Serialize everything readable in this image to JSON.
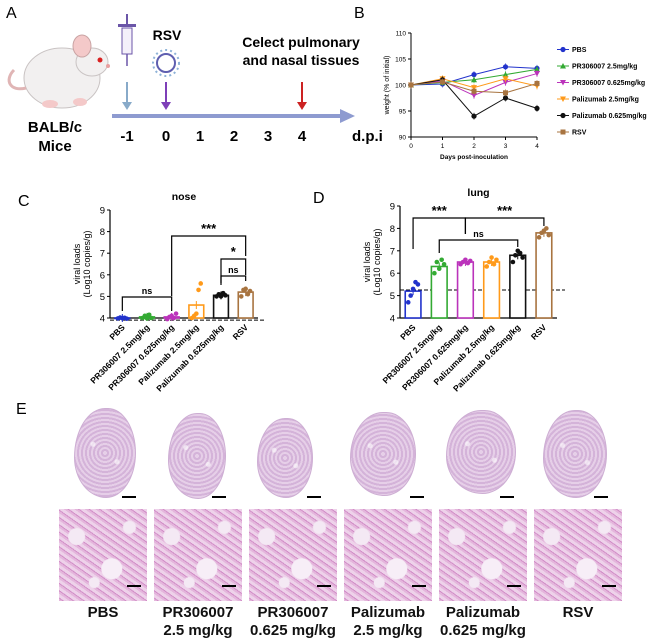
{
  "panels": {
    "a": "A",
    "b": "B",
    "c": "C",
    "d": "D",
    "e": "E"
  },
  "panel_a": {
    "mouse_label_1": "BALB/c",
    "mouse_label_2": "Mice",
    "virus_label": "RSV",
    "collect_line_1": "Celect pulmonary",
    "collect_line_2": "and nasal tissues",
    "timeline_ticks": [
      "-1",
      "0",
      "1",
      "2",
      "3",
      "4"
    ],
    "timeline_unit": "d.p.i",
    "colors": {
      "timeline": "#8e9bd0",
      "pre_arrow": "#88aac9",
      "virus_arrow": "#7e3fb8",
      "collect_arrow": "#cc2222"
    }
  },
  "chart_data": [
    {
      "id": "B",
      "type": "line",
      "title": "",
      "xlabel": "Days post-inoculation",
      "ylabel": "weight (% of initial)",
      "x": [
        0,
        1,
        2,
        3,
        4
      ],
      "xlim": [
        0,
        4
      ],
      "ylim": [
        90,
        110
      ],
      "xticks": [
        "0",
        "1",
        "2",
        "3",
        "4"
      ],
      "yticks": [
        "90",
        "95",
        "100",
        "105",
        "110"
      ],
      "series": [
        {
          "name": "PBS",
          "color": "#2233cc",
          "marker": "circle",
          "values": [
            100,
            100.2,
            102,
            103.5,
            103.2
          ]
        },
        {
          "name": "PR306007 2.5mg/kg",
          "color": "#33aa33",
          "marker": "triangle",
          "values": [
            100,
            100.5,
            101,
            102,
            103
          ]
        },
        {
          "name": "PR306007 0.625mg/kg",
          "color": "#bb33bb",
          "marker": "triangle-down",
          "values": [
            100,
            100.8,
            98,
            100.5,
            102.2
          ]
        },
        {
          "name": "Palizumab 2.5mg/kg",
          "color": "#ff9a1a",
          "marker": "triangle-down",
          "values": [
            100,
            101.2,
            99.5,
            101.2,
            99.8
          ]
        },
        {
          "name": "Palizumab 0.625mg/kg",
          "color": "#111111",
          "marker": "circle",
          "values": [
            100,
            101,
            94,
            97.5,
            95.5
          ]
        },
        {
          "name": "RSV",
          "color": "#a87440",
          "marker": "square",
          "values": [
            100,
            100.6,
            98.8,
            98.5,
            100.3
          ]
        }
      ]
    },
    {
      "id": "C",
      "type": "bar",
      "title": "nose",
      "ylabel_1": "viral loads",
      "ylabel_2": "(Log10 copies/g)",
      "ylim": [
        4,
        9
      ],
      "yticks": [
        "4",
        "5",
        "6",
        "7",
        "8",
        "9"
      ],
      "dashed_line": 3.9,
      "categories": [
        "PBS",
        "PR306007 2.5mg/kg",
        "PR306007 0.625mg/kg",
        "Palizumab 2.5mg/kg",
        "Palizumab 0.625mg/kg",
        "RSV"
      ],
      "colors": [
        "#2233cc",
        "#33aa33",
        "#bb33bb",
        "#ff9a1a",
        "#111111",
        "#a87440"
      ],
      "values": [
        4.0,
        4.05,
        4.05,
        4.6,
        5.05,
        5.2
      ],
      "points": [
        [
          3.98,
          4.02,
          3.99,
          4.01,
          3.97
        ],
        [
          4.0,
          4.1,
          3.98,
          4.15,
          4.0
        ],
        [
          3.95,
          4.05,
          4.1,
          4.0,
          4.2
        ],
        [
          4.0,
          4.1,
          4.2,
          5.3,
          5.6
        ],
        [
          5.0,
          5.1,
          5.0,
          5.15,
          5.05
        ],
        [
          5.0,
          5.3,
          5.35,
          5.1,
          5.25
        ]
      ],
      "sig": [
        "ns",
        "***",
        "*",
        "ns"
      ]
    },
    {
      "id": "D",
      "type": "bar",
      "title": "lung",
      "ylabel_1": "viral loads",
      "ylabel_2": "(Log10 copies/g)",
      "ylim": [
        4,
        9
      ],
      "yticks": [
        "4",
        "5",
        "6",
        "7",
        "8",
        "9"
      ],
      "dashed_line": 5.25,
      "categories": [
        "PBS",
        "PR306007 2.5mg/kg",
        "PR306007 0.625mg/kg",
        "Palizumab 2.5mg/kg",
        "Palizumab 0.625mg/kg",
        "RSV"
      ],
      "colors": [
        "#2233cc",
        "#33aa33",
        "#bb33bb",
        "#ff9a1a",
        "#111111",
        "#a87440"
      ],
      "values": [
        5.2,
        6.3,
        6.5,
        6.5,
        6.8,
        7.8
      ],
      "points": [
        [
          4.7,
          5.0,
          5.3,
          5.6,
          5.5
        ],
        [
          6.0,
          6.5,
          6.2,
          6.6,
          6.4
        ],
        [
          6.4,
          6.5,
          6.6,
          6.45,
          6.55
        ],
        [
          6.3,
          6.5,
          6.7,
          6.4,
          6.6
        ],
        [
          6.5,
          6.8,
          7.0,
          6.9,
          6.7
        ],
        [
          7.6,
          7.8,
          7.9,
          8.0,
          7.7
        ]
      ],
      "sig": [
        "***",
        "***",
        "ns"
      ]
    }
  ],
  "panel_e": {
    "groups": [
      {
        "line1": "PBS",
        "line2": ""
      },
      {
        "line1": "PR306007",
        "line2": "2.5 mg/kg"
      },
      {
        "line1": "PR306007",
        "line2": "0.625 mg/kg"
      },
      {
        "line1": "Palizumab",
        "line2": "2.5 mg/kg"
      },
      {
        "line1": "Palizumab",
        "line2": "0.625 mg/kg"
      },
      {
        "line1": "RSV",
        "line2": ""
      }
    ]
  }
}
